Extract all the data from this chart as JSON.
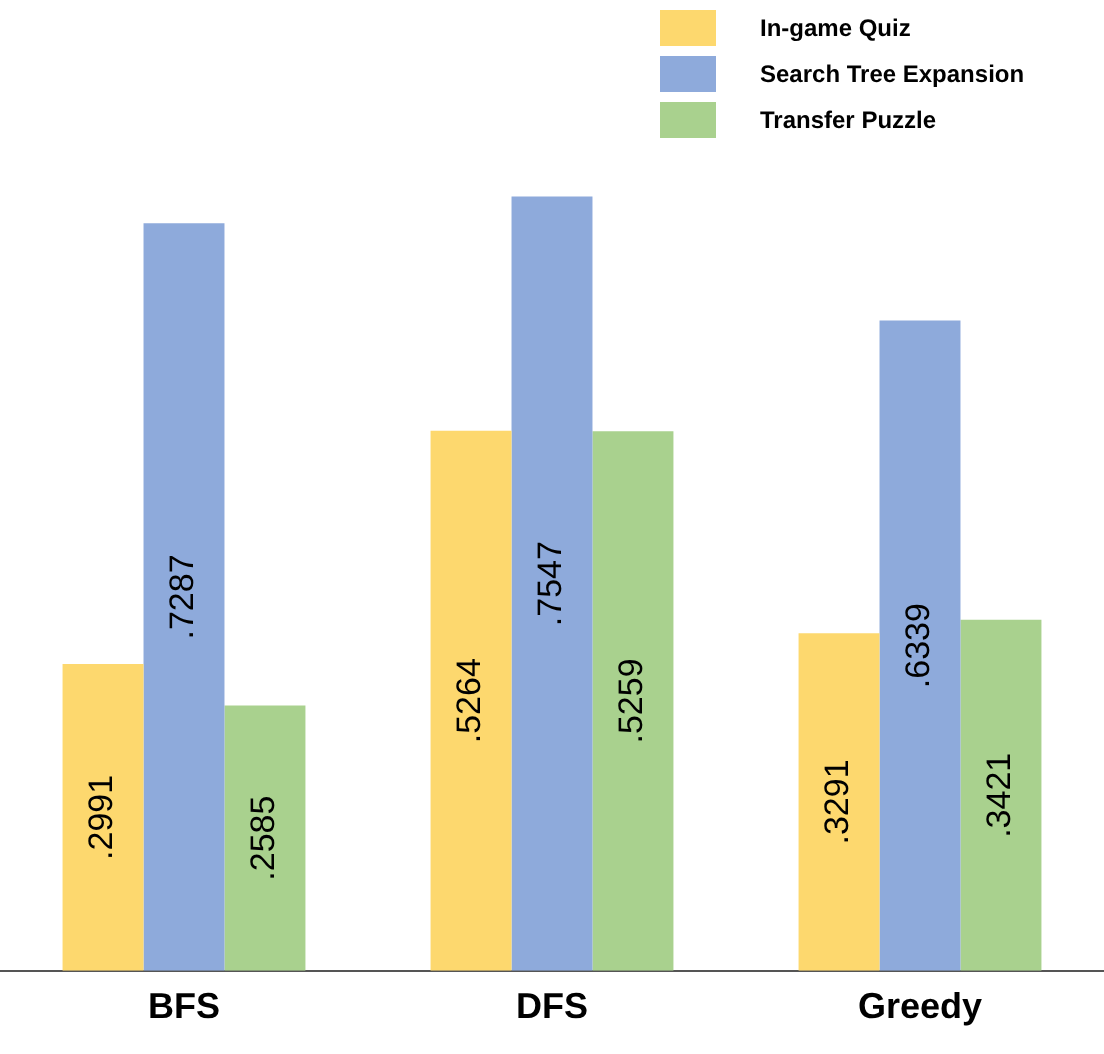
{
  "chart_data": {
    "type": "bar",
    "categories": [
      "BFS",
      "DFS",
      "Greedy"
    ],
    "series": [
      {
        "name": "In-game Quiz",
        "color": "#fdd86e",
        "values": [
          0.2991,
          0.5264,
          0.3291
        ],
        "value_labels": [
          ".2991",
          ".5264",
          ".3291"
        ]
      },
      {
        "name": "Search Tree Expansion",
        "color": "#8eaadb",
        "values": [
          0.7287,
          0.7547,
          0.6339
        ],
        "value_labels": [
          ".7287",
          ".7547",
          ".6339"
        ]
      },
      {
        "name": "Transfer Puzzle",
        "color": "#a9d18e",
        "values": [
          0.2585,
          0.5259,
          0.3421
        ],
        "value_labels": [
          ".2585",
          ".5259",
          ".3421"
        ]
      }
    ],
    "legend": "top right",
    "grid": false
  }
}
